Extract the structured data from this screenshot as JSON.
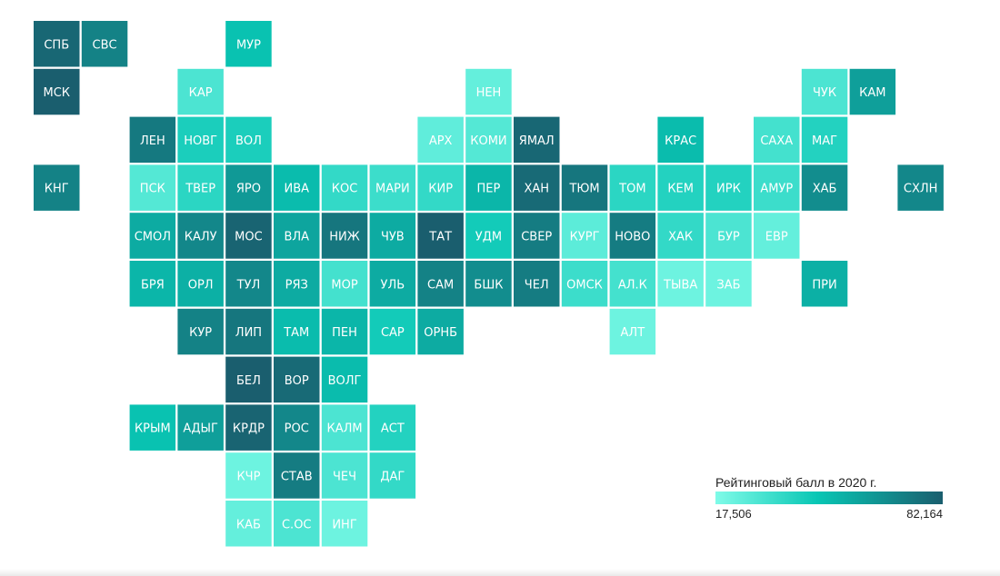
{
  "chart_data": {
    "type": "heatmap",
    "legend": {
      "title": "Рейтинговый балл в 2020 г.",
      "min_label": "17,506",
      "max_label": "82,164",
      "min": 17.506,
      "max": 82.164,
      "low_color": "#7ffbe8",
      "high_color": "#1a5e6e",
      "placement": "bottom-right"
    },
    "regions": [
      {
        "label": "СПБ",
        "row": 0,
        "col": 0,
        "value": 79
      },
      {
        "label": "СВС",
        "row": 0,
        "col": 1,
        "value": 70
      },
      {
        "label": "МУР",
        "row": 0,
        "col": 4,
        "value": 48
      },
      {
        "label": "МСК",
        "row": 1,
        "col": 0,
        "value": 82
      },
      {
        "label": "КАР",
        "row": 1,
        "col": 3,
        "value": 30
      },
      {
        "label": "НЕН",
        "row": 1,
        "col": 9,
        "value": 24
      },
      {
        "label": "ЧУК",
        "row": 1,
        "col": 16,
        "value": 30
      },
      {
        "label": "КАМ",
        "row": 1,
        "col": 17,
        "value": 60
      },
      {
        "label": "ЛЕН",
        "row": 2,
        "col": 2,
        "value": 73
      },
      {
        "label": "НОВГ",
        "row": 2,
        "col": 3,
        "value": 42
      },
      {
        "label": "ВОЛ",
        "row": 2,
        "col": 4,
        "value": 42
      },
      {
        "label": "АРХ",
        "row": 2,
        "col": 8,
        "value": 25
      },
      {
        "label": "КОМИ",
        "row": 2,
        "col": 9,
        "value": 28
      },
      {
        "label": "ЯМАЛ",
        "row": 2,
        "col": 10,
        "value": 79
      },
      {
        "label": "КРАС",
        "row": 2,
        "col": 13,
        "value": 50
      },
      {
        "label": "САХА",
        "row": 2,
        "col": 15,
        "value": 32
      },
      {
        "label": "МАГ",
        "row": 2,
        "col": 16,
        "value": 40
      },
      {
        "label": "КНГ",
        "row": 3,
        "col": 0,
        "value": 70
      },
      {
        "label": "ПСК",
        "row": 3,
        "col": 2,
        "value": 28
      },
      {
        "label": "ТВЕР",
        "row": 3,
        "col": 3,
        "value": 38
      },
      {
        "label": "ЯРО",
        "row": 3,
        "col": 4,
        "value": 62
      },
      {
        "label": "ИВА",
        "row": 3,
        "col": 5,
        "value": 50
      },
      {
        "label": "КОС",
        "row": 3,
        "col": 6,
        "value": 36
      },
      {
        "label": "МАРИ",
        "row": 3,
        "col": 7,
        "value": 34
      },
      {
        "label": "КИР",
        "row": 3,
        "col": 8,
        "value": 36
      },
      {
        "label": "ПЕР",
        "row": 3,
        "col": 9,
        "value": 52
      },
      {
        "label": "ХАН",
        "row": 3,
        "col": 10,
        "value": 78
      },
      {
        "label": "ТЮМ",
        "row": 3,
        "col": 11,
        "value": 74
      },
      {
        "label": "ТОМ",
        "row": 3,
        "col": 12,
        "value": 38
      },
      {
        "label": "КЕМ",
        "row": 3,
        "col": 13,
        "value": 40
      },
      {
        "label": "ИРК",
        "row": 3,
        "col": 14,
        "value": 40
      },
      {
        "label": "АМУР",
        "row": 3,
        "col": 15,
        "value": 34
      },
      {
        "label": "ХАБ",
        "row": 3,
        "col": 16,
        "value": 66
      },
      {
        "label": "СХЛН",
        "row": 3,
        "col": 18,
        "value": 68
      },
      {
        "label": "СМОЛ",
        "row": 4,
        "col": 2,
        "value": 56
      },
      {
        "label": "КАЛУ",
        "row": 4,
        "col": 3,
        "value": 68
      },
      {
        "label": "МОС",
        "row": 4,
        "col": 4,
        "value": 80
      },
      {
        "label": "ВЛА",
        "row": 4,
        "col": 5,
        "value": 58
      },
      {
        "label": "НИЖ",
        "row": 4,
        "col": 6,
        "value": 74
      },
      {
        "label": "ЧУВ",
        "row": 4,
        "col": 7,
        "value": 56
      },
      {
        "label": "ТАТ",
        "row": 4,
        "col": 8,
        "value": 82
      },
      {
        "label": "УДМ",
        "row": 4,
        "col": 9,
        "value": 44
      },
      {
        "label": "СВЕР",
        "row": 4,
        "col": 10,
        "value": 72
      },
      {
        "label": "КУРГ",
        "row": 4,
        "col": 11,
        "value": 26
      },
      {
        "label": "НОВО",
        "row": 4,
        "col": 12,
        "value": 72
      },
      {
        "label": "ХАК",
        "row": 4,
        "col": 13,
        "value": 36
      },
      {
        "label": "БУР",
        "row": 4,
        "col": 14,
        "value": 30
      },
      {
        "label": "ЕВР",
        "row": 4,
        "col": 15,
        "value": 24
      },
      {
        "label": "БРЯ",
        "row": 5,
        "col": 2,
        "value": 52
      },
      {
        "label": "ОРЛ",
        "row": 5,
        "col": 3,
        "value": 54
      },
      {
        "label": "ТУЛ",
        "row": 5,
        "col": 4,
        "value": 68
      },
      {
        "label": "РЯЗ",
        "row": 5,
        "col": 5,
        "value": 56
      },
      {
        "label": "МОР",
        "row": 5,
        "col": 6,
        "value": 32
      },
      {
        "label": "УЛЬ",
        "row": 5,
        "col": 7,
        "value": 56
      },
      {
        "label": "САМ",
        "row": 5,
        "col": 8,
        "value": 70
      },
      {
        "label": "БШК",
        "row": 5,
        "col": 9,
        "value": 66
      },
      {
        "label": "ЧЕЛ",
        "row": 5,
        "col": 10,
        "value": 72
      },
      {
        "label": "ОМСК",
        "row": 5,
        "col": 11,
        "value": 34
      },
      {
        "label": "АЛ.К",
        "row": 5,
        "col": 12,
        "value": 32
      },
      {
        "label": "ТЫВА",
        "row": 5,
        "col": 13,
        "value": 22
      },
      {
        "label": "ЗАБ",
        "row": 5,
        "col": 14,
        "value": 22
      },
      {
        "label": "ПРИ",
        "row": 5,
        "col": 16,
        "value": 54
      },
      {
        "label": "КУР",
        "row": 6,
        "col": 3,
        "value": 70
      },
      {
        "label": "ЛИП",
        "row": 6,
        "col": 4,
        "value": 74
      },
      {
        "label": "ТАМ",
        "row": 6,
        "col": 5,
        "value": 50
      },
      {
        "label": "ПЕН",
        "row": 6,
        "col": 6,
        "value": 52
      },
      {
        "label": "САР",
        "row": 6,
        "col": 7,
        "value": 44
      },
      {
        "label": "ОРНБ",
        "row": 6,
        "col": 8,
        "value": 56
      },
      {
        "label": "АЛТ",
        "row": 6,
        "col": 12,
        "value": 22
      },
      {
        "label": "БЕЛ",
        "row": 7,
        "col": 4,
        "value": 82
      },
      {
        "label": "ВОР",
        "row": 7,
        "col": 5,
        "value": 78
      },
      {
        "label": "ВОЛГ",
        "row": 7,
        "col": 6,
        "value": 50
      },
      {
        "label": "КРЫМ",
        "row": 8,
        "col": 2,
        "value": 48
      },
      {
        "label": "АДЫГ",
        "row": 8,
        "col": 3,
        "value": 60
      },
      {
        "label": "КРДР",
        "row": 8,
        "col": 4,
        "value": 80
      },
      {
        "label": "РОС",
        "row": 8,
        "col": 5,
        "value": 68
      },
      {
        "label": "КАЛМ",
        "row": 8,
        "col": 6,
        "value": 30
      },
      {
        "label": "АСТ",
        "row": 8,
        "col": 7,
        "value": 40
      },
      {
        "label": "КЧР",
        "row": 9,
        "col": 4,
        "value": 22
      },
      {
        "label": "СТАВ",
        "row": 9,
        "col": 5,
        "value": 72
      },
      {
        "label": "ЧЕЧ",
        "row": 9,
        "col": 6,
        "value": 30
      },
      {
        "label": "ДАГ",
        "row": 9,
        "col": 7,
        "value": 36
      },
      {
        "label": "КАБ",
        "row": 10,
        "col": 4,
        "value": 24
      },
      {
        "label": "С.ОС",
        "row": 10,
        "col": 5,
        "value": 30
      },
      {
        "label": "ИНГ",
        "row": 10,
        "col": 6,
        "value": 22
      }
    ]
  }
}
